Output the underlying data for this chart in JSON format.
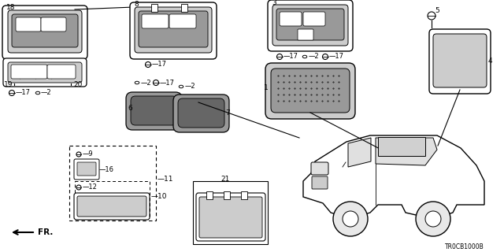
{
  "background_color": "#ffffff",
  "fig_width": 6.4,
  "fig_height": 3.2,
  "dpi": 100,
  "diagram_code": "TR0CB1000B",
  "line_color": "#000000",
  "text_color": "#000000",
  "gray_light": "#cccccc",
  "gray_med": "#999999",
  "gray_dark": "#666666",
  "font_size_label": 6.5,
  "font_size_code": 5.5
}
